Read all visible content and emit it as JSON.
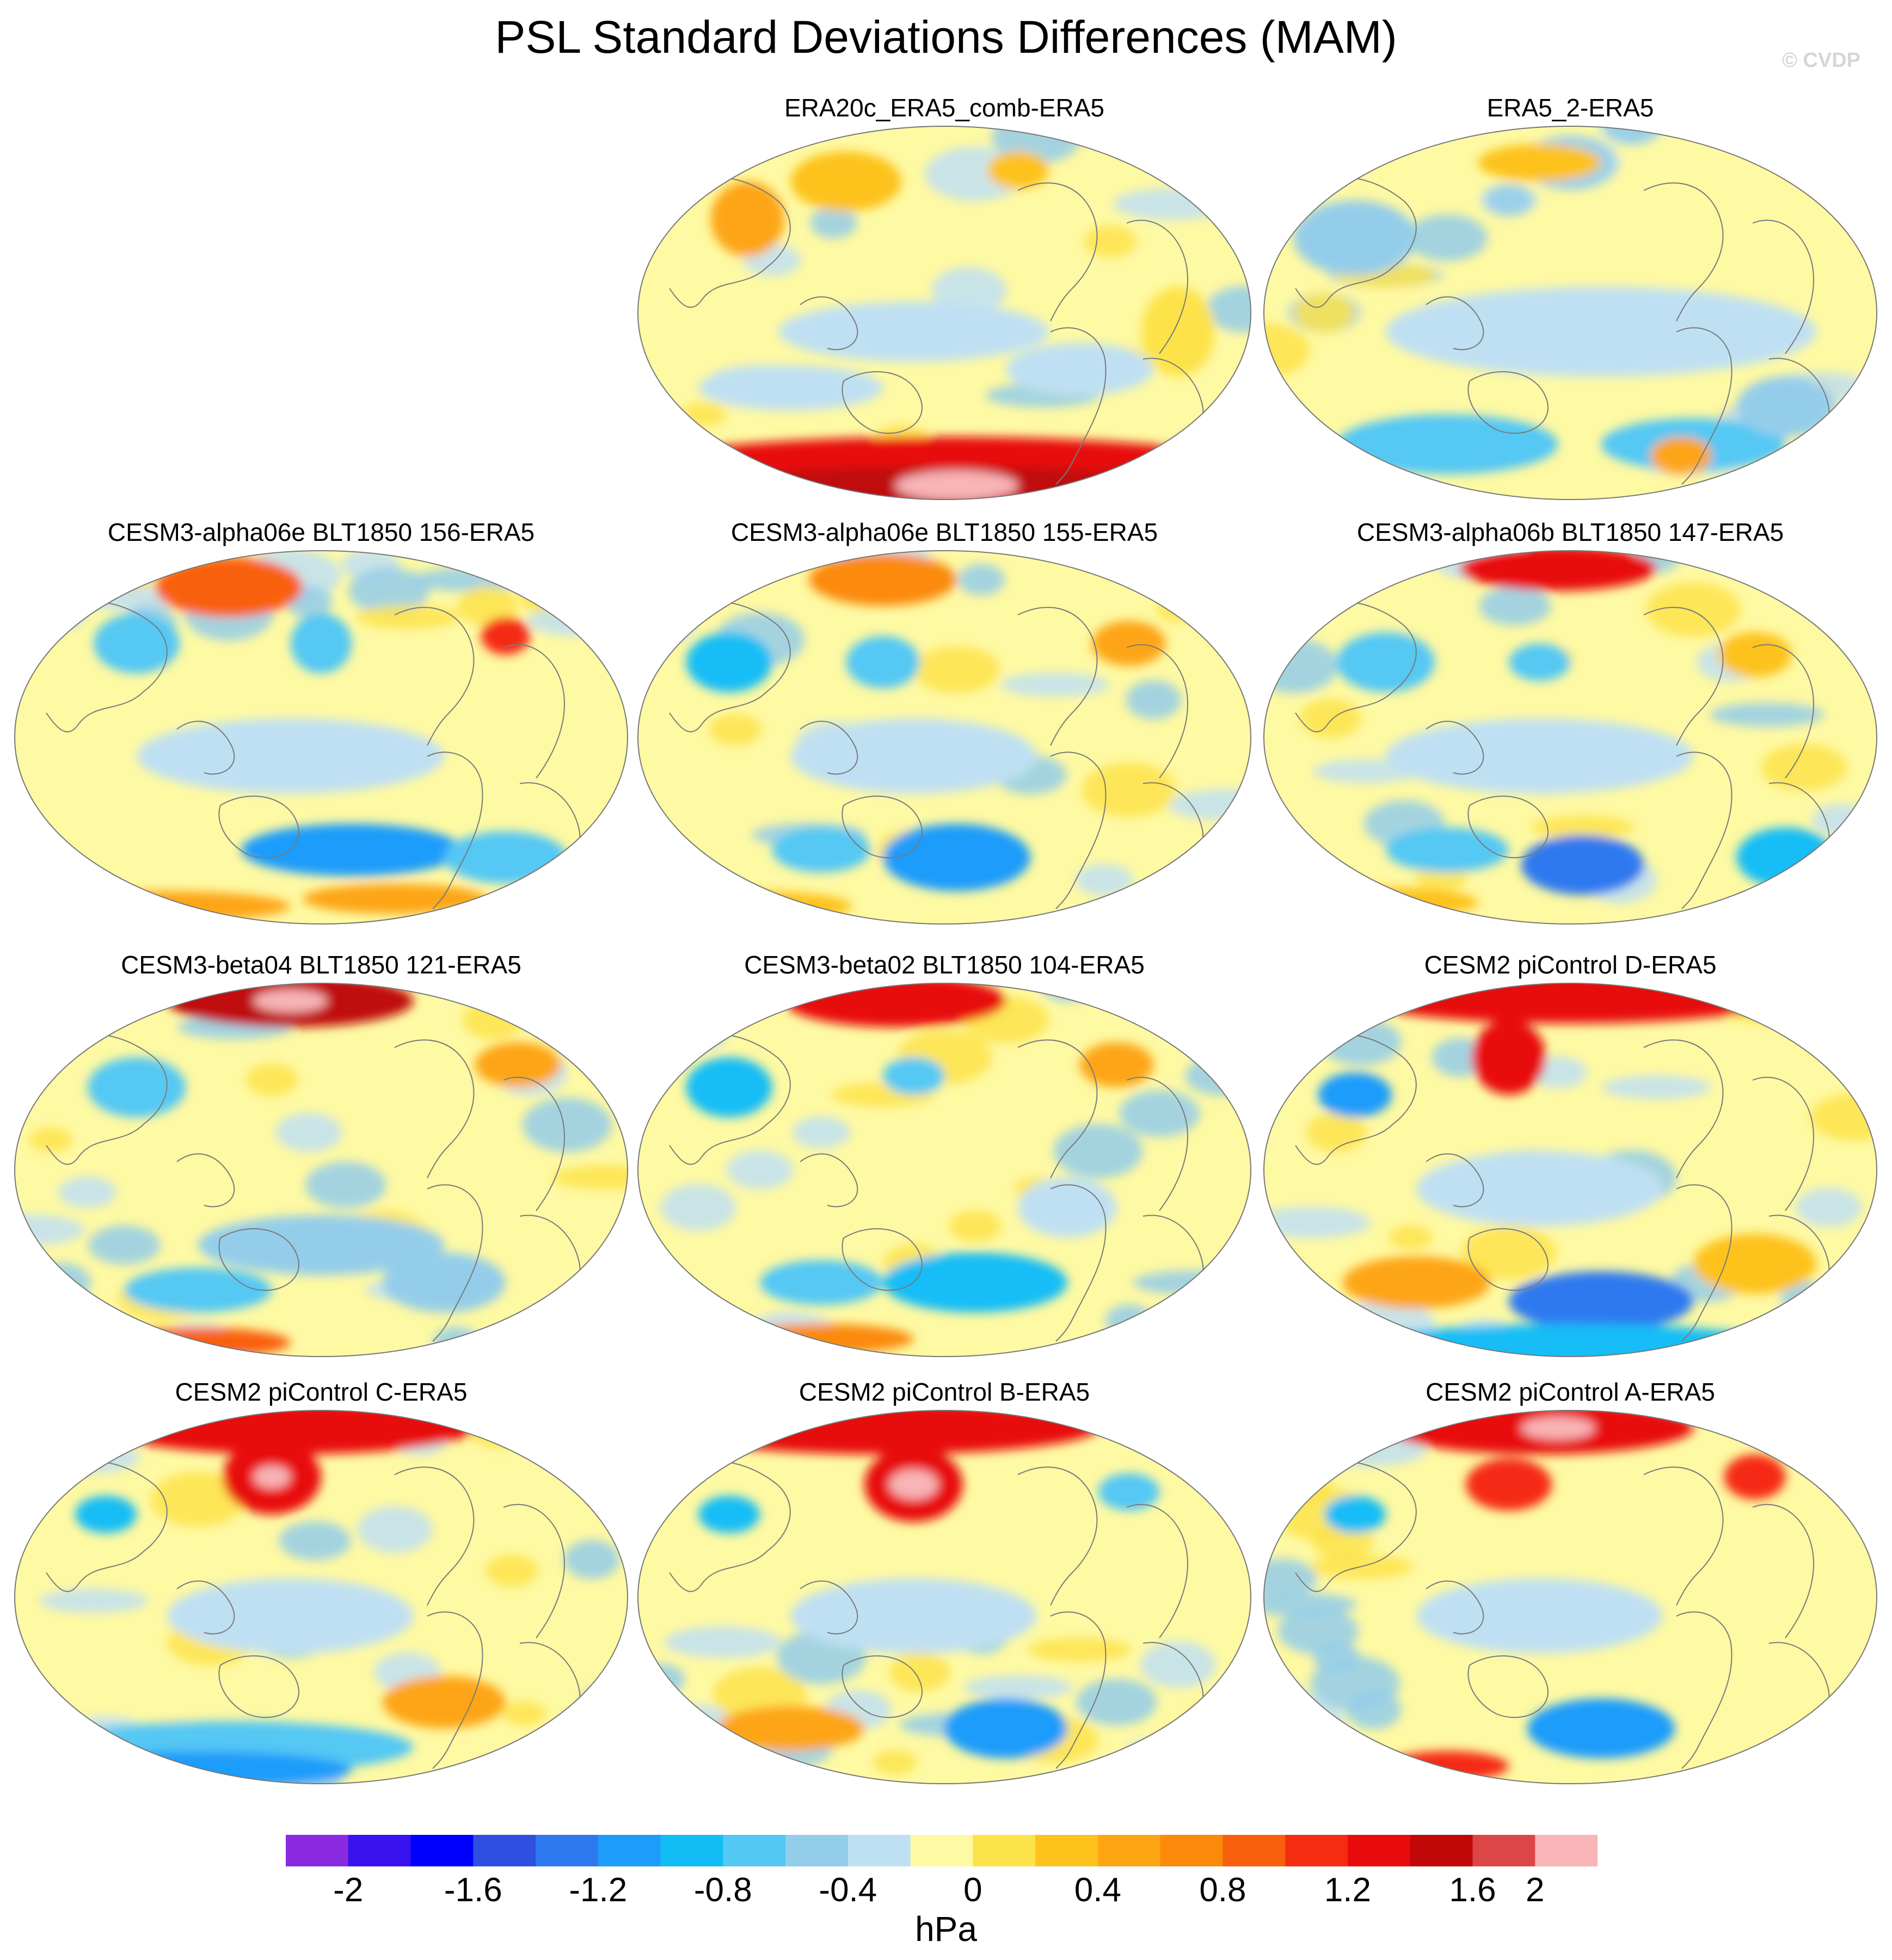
{
  "title": "PSL Standard Deviations Differences (MAM)",
  "watermark": "© CVDP",
  "units": "hPa",
  "colors": {
    "levels": [
      "#8a2be2",
      "#3a12f0",
      "#0000ff",
      "#2e4fe0",
      "#2f79f0",
      "#1e9cfb",
      "#12bdf6",
      "#54c8f4",
      "#94cdea",
      "#bfe0f3",
      "#fef9a3",
      "#fde34a",
      "#fdc21c",
      "#fda512",
      "#fb8a0a",
      "#f9600d",
      "#f52c12",
      "#e80c0c",
      "#c00808",
      "#dd4646",
      "#f8b4b6"
    ],
    "land_outline": "#7a7a7a",
    "map_border": "#777777"
  },
  "colorbar": {
    "ticks": [
      "-2",
      "-1.6",
      "-1.2",
      "-0.8",
      "-0.4",
      "0",
      "0.4",
      "0.8",
      "1.2",
      "1.6",
      "2"
    ]
  },
  "panels": [
    {
      "label": "ERA20c_ERA5_comb-ERA5",
      "features": {
        "bg": 10,
        "blobs": [
          [
            0.18,
            0.25,
            0.06,
            0.1,
            13
          ],
          [
            0.34,
            0.15,
            0.09,
            0.08,
            12
          ],
          [
            0.62,
            0.12,
            0.05,
            0.05,
            12
          ],
          [
            0.45,
            0.55,
            0.22,
            0.08,
            9
          ],
          [
            0.25,
            0.7,
            0.15,
            0.06,
            9
          ],
          [
            0.72,
            0.65,
            0.12,
            0.07,
            9
          ],
          [
            0.5,
            0.93,
            0.55,
            0.1,
            17
          ],
          [
            0.5,
            0.97,
            0.45,
            0.06,
            18
          ],
          [
            0.52,
            0.96,
            0.1,
            0.04,
            20
          ],
          [
            0.88,
            0.55,
            0.06,
            0.12,
            11
          ]
        ]
      }
    },
    {
      "label": "ERA5_2-ERA5",
      "features": {
        "bg": 10,
        "blobs": [
          [
            0.15,
            0.3,
            0.1,
            0.1,
            8
          ],
          [
            0.55,
            0.55,
            0.35,
            0.12,
            9
          ],
          [
            0.3,
            0.85,
            0.18,
            0.08,
            7
          ],
          [
            0.7,
            0.85,
            0.15,
            0.07,
            7
          ],
          [
            0.45,
            0.1,
            0.1,
            0.05,
            12
          ],
          [
            0.68,
            0.88,
            0.05,
            0.05,
            13
          ],
          [
            0.85,
            0.75,
            0.08,
            0.08,
            8
          ]
        ]
      }
    },
    {
      "label": "CESM3-alpha06e BLT1850 156-ERA5",
      "features": {
        "bg": 10,
        "blobs": [
          [
            0.35,
            0.1,
            0.12,
            0.08,
            15
          ],
          [
            0.2,
            0.25,
            0.07,
            0.08,
            7
          ],
          [
            0.5,
            0.25,
            0.05,
            0.08,
            7
          ],
          [
            0.8,
            0.23,
            0.04,
            0.05,
            16
          ],
          [
            0.55,
            0.8,
            0.18,
            0.07,
            5
          ],
          [
            0.8,
            0.82,
            0.1,
            0.07,
            7
          ],
          [
            0.45,
            0.55,
            0.25,
            0.1,
            9
          ],
          [
            0.25,
            0.95,
            0.2,
            0.04,
            13
          ],
          [
            0.62,
            0.93,
            0.15,
            0.04,
            13
          ]
        ]
      }
    },
    {
      "label": "CESM3-alpha06e BLT1850 155-ERA5",
      "features": {
        "bg": 10,
        "blobs": [
          [
            0.4,
            0.08,
            0.12,
            0.07,
            14
          ],
          [
            0.15,
            0.3,
            0.07,
            0.08,
            6
          ],
          [
            0.4,
            0.3,
            0.06,
            0.07,
            7
          ],
          [
            0.8,
            0.25,
            0.06,
            0.06,
            13
          ],
          [
            0.52,
            0.82,
            0.12,
            0.09,
            5
          ],
          [
            0.3,
            0.8,
            0.08,
            0.06,
            7
          ],
          [
            0.45,
            0.55,
            0.2,
            0.1,
            9
          ],
          [
            0.2,
            0.95,
            0.15,
            0.04,
            12
          ]
        ]
      }
    },
    {
      "label": "CESM3-alpha06b BLT1850 147-ERA5",
      "features": {
        "bg": 10,
        "blobs": [
          [
            0.48,
            0.05,
            0.16,
            0.06,
            17
          ],
          [
            0.2,
            0.3,
            0.08,
            0.08,
            7
          ],
          [
            0.45,
            0.3,
            0.05,
            0.05,
            7
          ],
          [
            0.8,
            0.28,
            0.06,
            0.06,
            12
          ],
          [
            0.52,
            0.84,
            0.1,
            0.08,
            4
          ],
          [
            0.3,
            0.8,
            0.1,
            0.06,
            7
          ],
          [
            0.85,
            0.82,
            0.08,
            0.08,
            6
          ],
          [
            0.45,
            0.55,
            0.25,
            0.1,
            9
          ],
          [
            0.2,
            0.94,
            0.15,
            0.04,
            12
          ]
        ]
      }
    },
    {
      "label": "CESM3-beta04 BLT1850 121-ERA5",
      "features": {
        "bg": 10,
        "blobs": [
          [
            0.45,
            0.05,
            0.2,
            0.07,
            18
          ],
          [
            0.45,
            0.05,
            0.06,
            0.03,
            20
          ],
          [
            0.2,
            0.28,
            0.08,
            0.08,
            7
          ],
          [
            0.82,
            0.22,
            0.07,
            0.06,
            13
          ],
          [
            0.5,
            0.7,
            0.2,
            0.08,
            8
          ],
          [
            0.3,
            0.82,
            0.12,
            0.06,
            7
          ],
          [
            0.3,
            0.96,
            0.15,
            0.04,
            15
          ],
          [
            0.7,
            0.8,
            0.1,
            0.08,
            8
          ]
        ]
      }
    },
    {
      "label": "CESM3-beta02 BLT1850 104-ERA5",
      "features": {
        "bg": 10,
        "blobs": [
          [
            0.42,
            0.05,
            0.18,
            0.07,
            17
          ],
          [
            0.15,
            0.28,
            0.07,
            0.08,
            6
          ],
          [
            0.45,
            0.25,
            0.05,
            0.05,
            7
          ],
          [
            0.78,
            0.22,
            0.06,
            0.06,
            13
          ],
          [
            0.55,
            0.8,
            0.15,
            0.08,
            6
          ],
          [
            0.3,
            0.8,
            0.1,
            0.06,
            7
          ],
          [
            0.3,
            0.95,
            0.15,
            0.04,
            14
          ],
          [
            0.7,
            0.6,
            0.08,
            0.08,
            9
          ]
        ]
      }
    },
    {
      "label": "CESM2 piControl D-ERA5",
      "features": {
        "bg": 10,
        "blobs": [
          [
            0.5,
            0.04,
            0.35,
            0.07,
            17
          ],
          [
            0.4,
            0.2,
            0.06,
            0.1,
            17
          ],
          [
            0.15,
            0.3,
            0.06,
            0.06,
            5
          ],
          [
            0.55,
            0.85,
            0.15,
            0.08,
            4
          ],
          [
            0.5,
            0.97,
            0.35,
            0.06,
            6
          ],
          [
            0.25,
            0.8,
            0.12,
            0.07,
            13
          ],
          [
            0.8,
            0.75,
            0.1,
            0.08,
            12
          ],
          [
            0.45,
            0.55,
            0.2,
            0.1,
            9
          ]
        ]
      }
    },
    {
      "label": "CESM2 piControl C-ERA5",
      "features": {
        "bg": 10,
        "blobs": [
          [
            0.45,
            0.05,
            0.3,
            0.07,
            17
          ],
          [
            0.42,
            0.18,
            0.08,
            0.1,
            17
          ],
          [
            0.42,
            0.18,
            0.03,
            0.03,
            20
          ],
          [
            0.15,
            0.28,
            0.05,
            0.05,
            6
          ],
          [
            0.35,
            0.9,
            0.3,
            0.07,
            7
          ],
          [
            0.3,
            0.96,
            0.25,
            0.05,
            5
          ],
          [
            0.7,
            0.78,
            0.1,
            0.07,
            13
          ],
          [
            0.45,
            0.55,
            0.2,
            0.1,
            9
          ]
        ]
      }
    },
    {
      "label": "CESM2 piControl B-ERA5",
      "features": {
        "bg": 10,
        "blobs": [
          [
            0.4,
            0.05,
            0.35,
            0.07,
            17
          ],
          [
            0.45,
            0.2,
            0.08,
            0.1,
            17
          ],
          [
            0.45,
            0.2,
            0.04,
            0.04,
            20
          ],
          [
            0.15,
            0.28,
            0.05,
            0.05,
            6
          ],
          [
            0.6,
            0.85,
            0.1,
            0.08,
            5
          ],
          [
            0.8,
            0.22,
            0.05,
            0.05,
            7
          ],
          [
            0.25,
            0.85,
            0.12,
            0.06,
            13
          ],
          [
            0.45,
            0.55,
            0.2,
            0.1,
            9
          ]
        ]
      }
    },
    {
      "label": "CESM2 piControl A-ERA5",
      "features": {
        "bg": 10,
        "blobs": [
          [
            0.45,
            0.05,
            0.25,
            0.07,
            17
          ],
          [
            0.48,
            0.05,
            0.06,
            0.03,
            20
          ],
          [
            0.4,
            0.2,
            0.07,
            0.07,
            16
          ],
          [
            0.8,
            0.18,
            0.05,
            0.06,
            16
          ],
          [
            0.15,
            0.28,
            0.05,
            0.05,
            6
          ],
          [
            0.55,
            0.85,
            0.12,
            0.08,
            5
          ],
          [
            0.3,
            0.95,
            0.1,
            0.04,
            16
          ],
          [
            0.45,
            0.55,
            0.2,
            0.1,
            9
          ]
        ]
      }
    }
  ]
}
